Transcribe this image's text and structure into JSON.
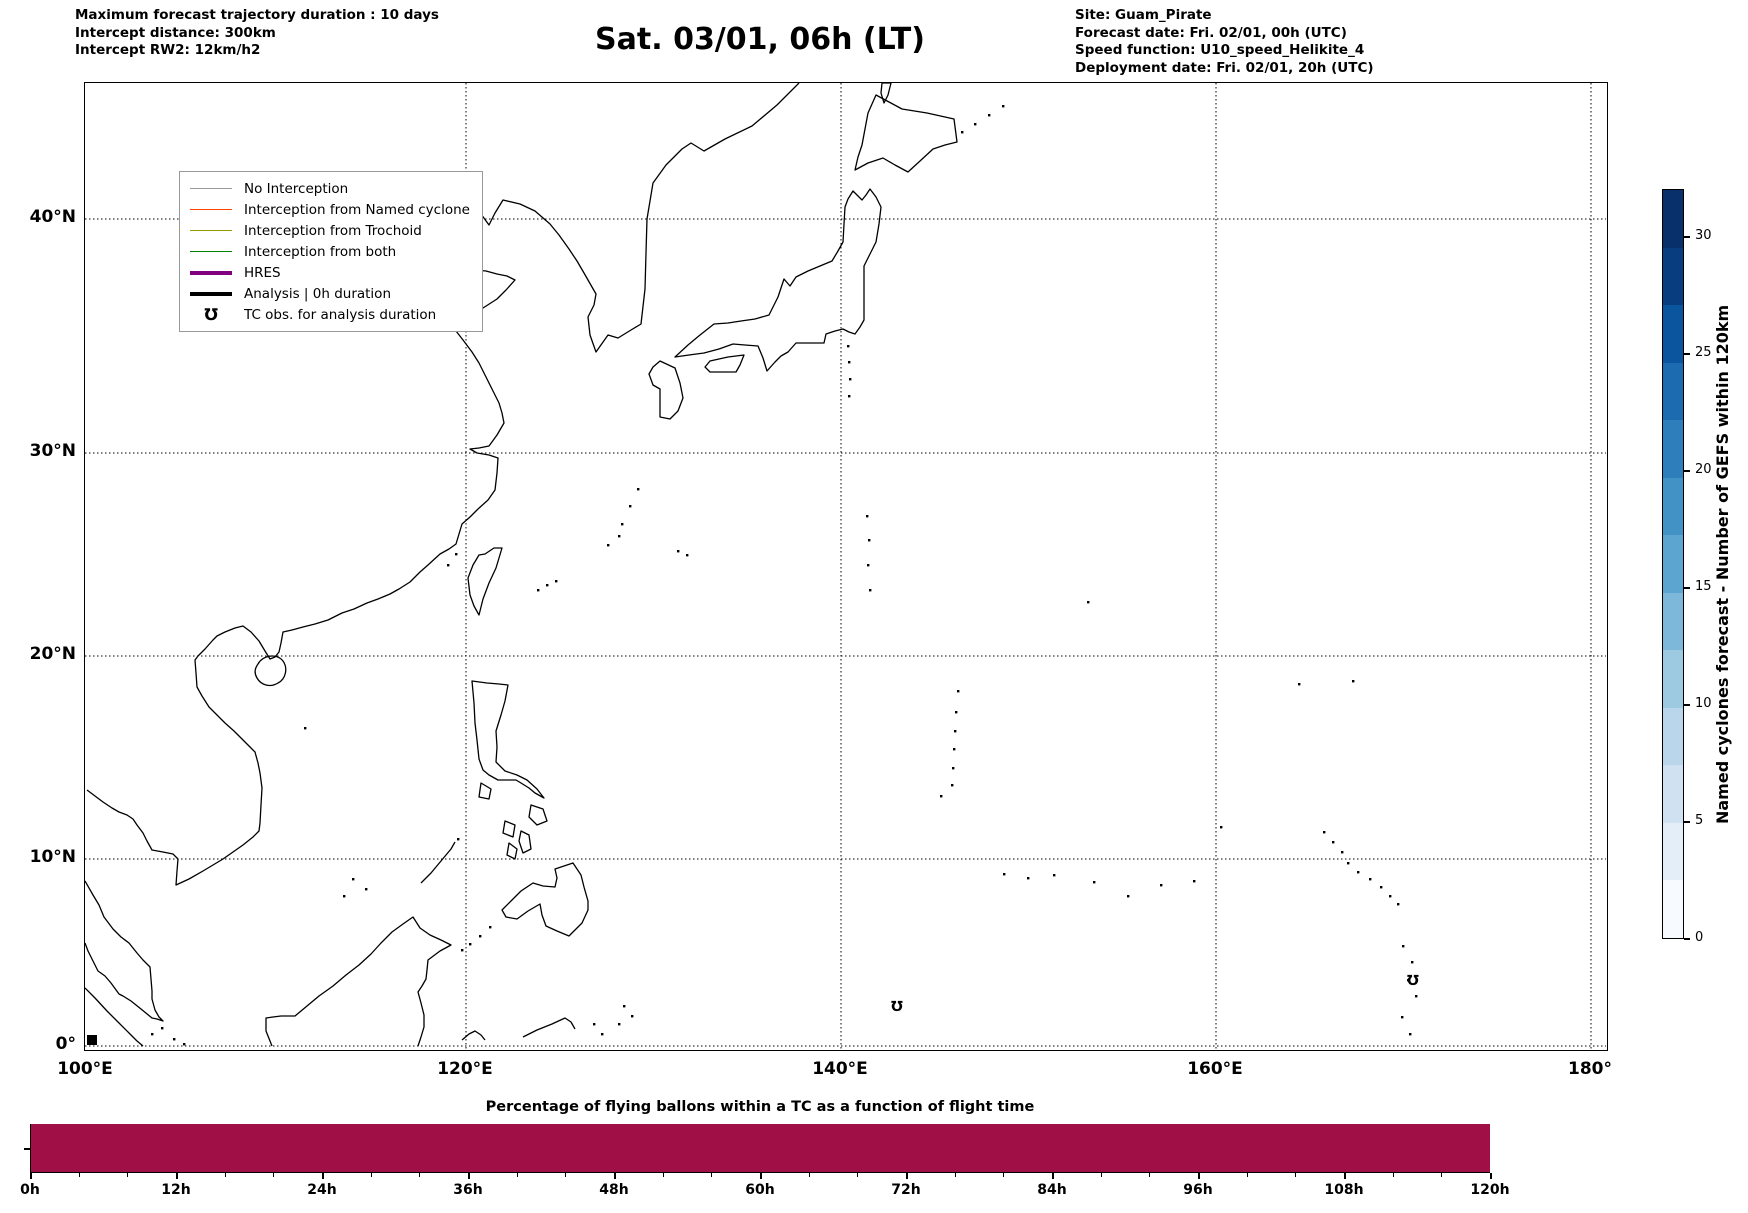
{
  "header": {
    "left_lines": [
      "Maximum forecast trajectory duration : 10 days",
      "Intercept distance: 300km",
      "Intercept RW2: 12km/h2"
    ],
    "title": "Sat. 03/01, 06h (LT)",
    "right_lines": [
      "Site: Guam_Pirate",
      "Forecast date: Fri. 02/01, 00h (UTC)",
      "Speed function: U10_speed_Helikite_4",
      "Deployment date: Fri. 02/01, 20h (UTC)"
    ]
  },
  "map": {
    "xticks": [
      "100°E",
      "120°E",
      "140°E",
      "160°E",
      "180°"
    ],
    "yticks": [
      "40°N",
      "30°N",
      "20°N",
      "10°N",
      "0°"
    ],
    "legend": {
      "items": [
        {
          "label": "No Interception",
          "style": "thin-line",
          "color": "#999999"
        },
        {
          "label": "Interception from Named cyclone",
          "style": "thin-line",
          "color": "#FF4500"
        },
        {
          "label": "Interception from Trochoid",
          "style": "thin-line",
          "color": "#999900"
        },
        {
          "label": "Interception from both",
          "style": "thin-line",
          "color": "#008000"
        },
        {
          "label": "HRES",
          "style": "thick-line",
          "color": "#800080"
        },
        {
          "label": "Analysis | 0h duration",
          "style": "thick-line",
          "color": "#000000"
        },
        {
          "label": "TC obs. for analysis duration",
          "style": "glyph",
          "glyph": "℧",
          "color": "#000000"
        }
      ]
    }
  },
  "colorbar": {
    "label": "Named cyclones forecast - Number of GEFS within 120km",
    "tick_labels": [
      "0",
      "5",
      "10",
      "15",
      "20",
      "25",
      "30"
    ],
    "range": [
      0,
      32.5
    ],
    "colors_top_to_bottom": [
      "#08306b",
      "#083d7f",
      "#0b559f",
      "#1c6bb0",
      "#2f7ebc",
      "#4292c6",
      "#5da5d1",
      "#7db8da",
      "#9dc9e1",
      "#b9d6ea",
      "#d0e2f2",
      "#e3eef9",
      "#f7fbff"
    ]
  },
  "chart_data": {
    "type": "bar",
    "title": "Percentage of flying ballons within a TC as a function of flight time",
    "x_tick_labels": [
      "0h",
      "12h",
      "24h",
      "36h",
      "48h",
      "60h",
      "72h",
      "84h",
      "96h",
      "108h",
      "120h"
    ],
    "x_unit": "hours",
    "x_range": [
      0,
      120
    ],
    "series": [
      {
        "name": "percentage of flying balloons within a TC",
        "x": [
          0,
          12,
          24,
          36,
          48,
          60,
          72,
          84,
          96,
          108,
          120
        ],
        "values": [
          100,
          100,
          100,
          100,
          100,
          100,
          100,
          100,
          100,
          100,
          100
        ]
      }
    ],
    "note": "solid full-height band across the whole 0h-120h range; no y-axis tick labels visible",
    "bar_color": "#A00F46",
    "grid": false,
    "legend_position": "none"
  }
}
